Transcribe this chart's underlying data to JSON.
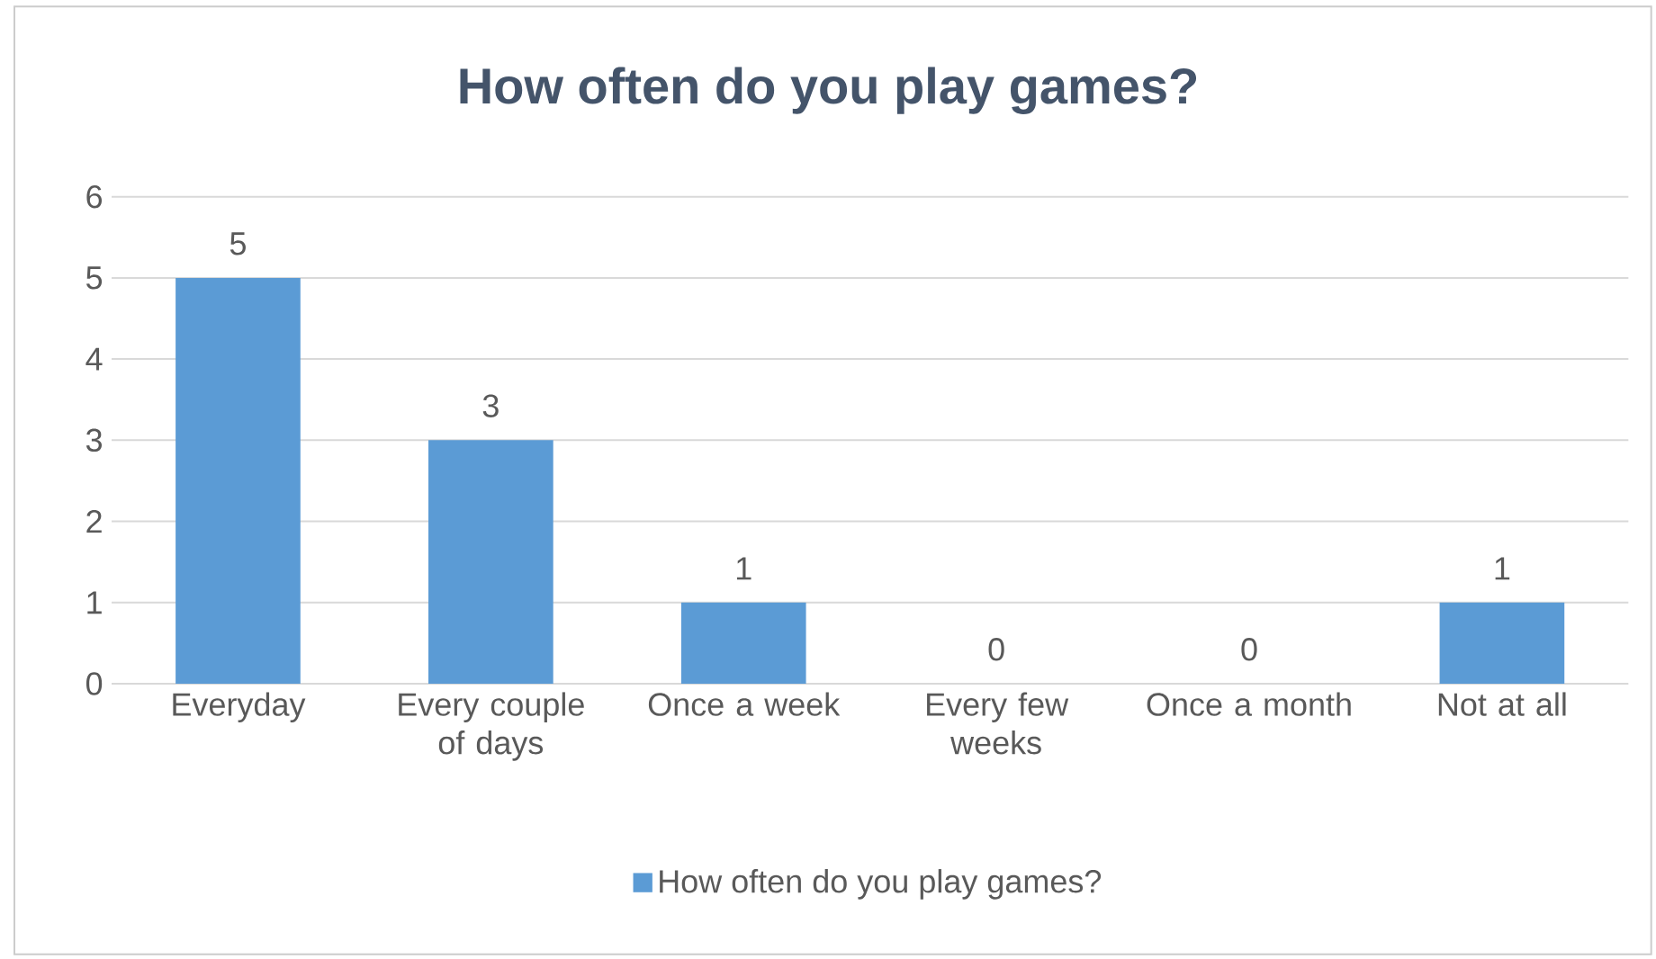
{
  "chart_data": {
    "type": "bar",
    "title": "How often do you play games?",
    "categories": [
      "Everyday",
      "Every couple of days",
      "Once a week",
      "Every few weeks",
      "Once a month",
      "Not at all"
    ],
    "series": [
      {
        "name": "How often do you play games?",
        "color": "#5b9bd5",
        "values": [
          5,
          3,
          1,
          0,
          0,
          1
        ]
      }
    ],
    "ylim": [
      0,
      6
    ],
    "yticks": [
      0,
      1,
      2,
      3,
      4,
      5,
      6
    ],
    "grid": "y",
    "legend": "bottom",
    "data_labels": true
  }
}
